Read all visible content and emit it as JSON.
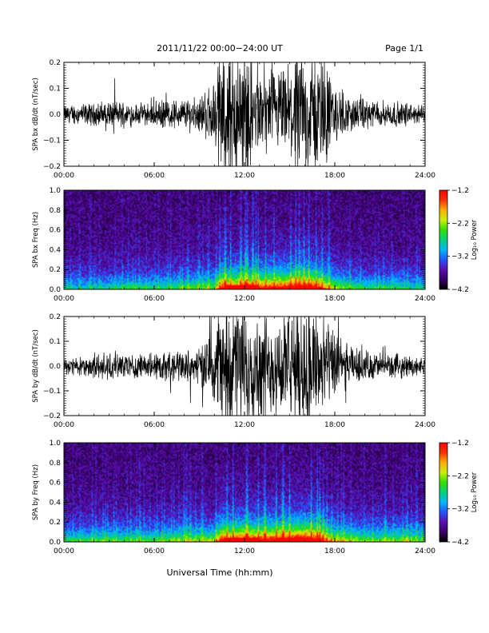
{
  "header": {
    "date_range": "2011/11/22  00:00−24:00 UT",
    "page": "Page 1/1"
  },
  "footer": {
    "xlabel": "Universal Time (hh:mm)"
  },
  "colors": {
    "trace": "#000000",
    "colormap": [
      "#000000",
      "#3a006a",
      "#5a0fb0",
      "#2255ff",
      "#00b8ff",
      "#00d27a",
      "#33e000",
      "#ccf000",
      "#ffb000",
      "#ff3000",
      "#ff0000"
    ]
  },
  "chart_data": [
    {
      "type": "line",
      "ylabel": "SPA bx dB/dt (nT/sec)",
      "xlim": [
        0,
        24
      ],
      "ylim": [
        -0.2,
        0.2
      ],
      "xticks": [
        "00:00",
        "06:00",
        "12:00",
        "18:00",
        "24:00"
      ],
      "yticks": [
        "−0.2",
        "−0.1",
        "0.0",
        "0.1",
        "0.2"
      ],
      "series": [
        {
          "x": [
            0,
            1,
            2,
            3,
            4,
            5,
            6,
            7,
            8,
            9,
            10,
            10.5,
            11,
            12,
            13,
            14,
            15,
            16,
            17,
            18,
            19,
            20,
            21,
            22,
            23,
            24
          ],
          "amplitude": [
            0.025,
            0.03,
            0.03,
            0.04,
            0.035,
            0.03,
            0.035,
            0.04,
            0.045,
            0.05,
            0.09,
            0.2,
            0.2,
            0.2,
            0.11,
            0.12,
            0.14,
            0.18,
            0.16,
            0.09,
            0.05,
            0.04,
            0.04,
            0.035,
            0.03,
            0.025
          ]
        }
      ]
    },
    {
      "type": "heatmap",
      "ylabel": "SPA bx Freq (Hz)",
      "xlim": [
        0,
        24
      ],
      "ylim": [
        0.0,
        1.0
      ],
      "xticks": [
        "00:00",
        "06:00",
        "12:00",
        "18:00",
        "24:00"
      ],
      "yticks": [
        "0.0",
        "0.2",
        "0.4",
        "0.6",
        "0.8",
        "1.0"
      ],
      "colorbar": {
        "label": "Log₁₀ Power",
        "range": [
          -4.2,
          -1.2
        ],
        "ticks": [
          "−1.2",
          "−2.2",
          "−3.2",
          "−4.2"
        ]
      },
      "activity": {
        "x": [
          0,
          2,
          4,
          6,
          8,
          10,
          10.5,
          11,
          12,
          13,
          14,
          15,
          16,
          17,
          17.5,
          18,
          20,
          22,
          24
        ],
        "level": [
          0.3,
          0.3,
          0.35,
          0.35,
          0.4,
          0.45,
          0.8,
          0.75,
          0.8,
          0.75,
          0.8,
          0.85,
          0.9,
          0.8,
          0.6,
          0.5,
          0.35,
          0.35,
          0.3
        ]
      }
    },
    {
      "type": "line",
      "ylabel": "SPA by dB/dt (nT/sec)",
      "xlim": [
        0,
        24
      ],
      "ylim": [
        -0.2,
        0.2
      ],
      "xticks": [
        "00:00",
        "06:00",
        "12:00",
        "18:00",
        "24:00"
      ],
      "yticks": [
        "−0.2",
        "−0.1",
        "0.0",
        "0.1",
        "0.2"
      ],
      "series": [
        {
          "x": [
            0,
            1,
            2,
            3,
            4,
            5,
            6,
            7,
            8,
            9,
            10,
            10.5,
            11,
            12,
            13,
            14,
            15,
            16,
            17,
            18,
            19,
            20,
            21,
            22,
            23,
            24
          ],
          "amplitude": [
            0.025,
            0.03,
            0.035,
            0.04,
            0.04,
            0.035,
            0.04,
            0.045,
            0.05,
            0.06,
            0.1,
            0.2,
            0.2,
            0.2,
            0.15,
            0.15,
            0.17,
            0.2,
            0.17,
            0.1,
            0.06,
            0.045,
            0.04,
            0.035,
            0.03,
            0.025
          ]
        }
      ]
    },
    {
      "type": "heatmap",
      "ylabel": "SPA by Freq (Hz)",
      "xlim": [
        0,
        24
      ],
      "ylim": [
        0.0,
        1.0
      ],
      "xticks": [
        "00:00",
        "06:00",
        "12:00",
        "18:00",
        "24:00"
      ],
      "yticks": [
        "0.0",
        "0.2",
        "0.4",
        "0.6",
        "0.8",
        "1.0"
      ],
      "colorbar": {
        "label": "Log₁₀ Power",
        "range": [
          -4.2,
          -1.2
        ],
        "ticks": [
          "−1.2",
          "−2.2",
          "−3.2",
          "−4.2"
        ]
      },
      "activity": {
        "x": [
          0,
          2,
          4,
          6,
          8,
          10,
          10.5,
          11,
          12,
          13,
          14,
          15,
          16,
          17,
          17.5,
          18,
          20,
          22,
          24
        ],
        "level": [
          0.35,
          0.4,
          0.4,
          0.4,
          0.45,
          0.5,
          0.85,
          0.8,
          0.85,
          0.8,
          0.85,
          0.9,
          0.95,
          0.85,
          0.65,
          0.55,
          0.45,
          0.45,
          0.4
        ]
      }
    }
  ]
}
